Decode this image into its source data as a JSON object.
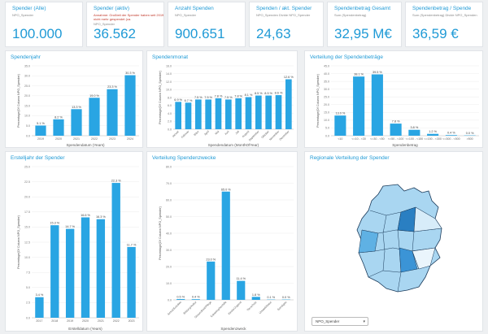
{
  "kpis": [
    {
      "title": "Spender (Alle)",
      "sub": "NPO_Spender",
      "sub2": "",
      "value": "100.000"
    },
    {
      "title": "Spender (aktiv)",
      "sub": "Annahme: Großteil der Spender haben seit 2019 nicht mehr gespendet (ca.",
      "sub2": "NPO_Spender",
      "value": "36.562"
    },
    {
      "title": "Anzahl Spenden",
      "sub": "NPO_Spender",
      "sub2": "",
      "value": "900.651"
    },
    {
      "title": "Spenden / akt. Spender",
      "sub": "NPO_Spenden Divide NPO_Spender",
      "sub2": "",
      "value": "24,63"
    },
    {
      "title": "Spendenbetrag Gesamt",
      "sub": "Sum (Spendenbetrag)",
      "sub2": "",
      "value": "32,95 M€"
    },
    {
      "title": "Spendenbetrag / Spende",
      "sub": "Sum (Spendenbetrag) Divide NPO_Spenden",
      "sub2": "",
      "value": "36,59 €"
    }
  ],
  "charts": {
    "spendenjahr": {
      "title": "Spendenjahr"
    },
    "spendenmonat": {
      "title": "Spendenmonat"
    },
    "verteilung_betraege": {
      "title": "Verteilung der Spendenbeträge"
    },
    "erstelljahr": {
      "title": "Erstelljahr der Spender"
    },
    "spendenzwecke": {
      "title": "Verteilung Spendenzwecke"
    },
    "regional": {
      "title": "Regionale Verteilung der Spender"
    }
  },
  "region_select": {
    "value": "NPO_Spender"
  },
  "colors": {
    "accent": "#1f9ad6",
    "bar": "#29a5e3"
  },
  "chart_data": [
    {
      "type": "bar",
      "title": "Spendenjahr",
      "xlabel": "Spendendatum (Years)",
      "ylabel": "Percentage(Of Column NPO_Spender)",
      "categories": [
        "2019",
        "2020",
        "2021",
        "2022",
        "2023",
        "2024"
      ],
      "values": [
        5.1,
        8.2,
        13.3,
        19.0,
        23.3,
        30.3
      ],
      "labels": [
        "5.1 %",
        "8.2 %",
        "13.3 %",
        "19.0 %",
        "23.3 %",
        "30.3 %"
      ],
      "ylim": [
        0,
        35
      ],
      "yticks": [
        "0.0",
        "5.0",
        "10.0",
        "15.0",
        "20.0",
        "25.0",
        "30.0",
        "35.0"
      ]
    },
    {
      "type": "bar",
      "title": "Spendenmonat",
      "xlabel": "Spendendatum (MonthOfYear)",
      "ylabel": "Percentage(Of Column NPO_Spender)",
      "categories": [
        "Januar",
        "Februar",
        "März",
        "April",
        "Mai",
        "Juni",
        "Juli",
        "August",
        "September",
        "Oktober",
        "November",
        "Dezember"
      ],
      "values": [
        6.9,
        6.7,
        7.5,
        7.5,
        7.8,
        7.5,
        7.8,
        8.1,
        8.5,
        8.5,
        8.6,
        12.6
      ],
      "labels": [
        "6.9 %",
        "6.7 %",
        "7.5 %",
        "7.5 %",
        "7.8 %",
        "7.5 %",
        "7.8 %",
        "8.1 %",
        "8.5 %",
        "8.5 %",
        "8.6 %",
        "12.6 %"
      ],
      "ylim": [
        0,
        16
      ],
      "yticks": [
        "0.0",
        "2.0",
        "4.0",
        "6.0",
        "8.0",
        "10.0",
        "12.0",
        "14.0",
        "16.0"
      ]
    },
    {
      "type": "bar",
      "title": "Verteilung der Spendenbeträge",
      "xlabel": "Spendenbetrag",
      "ylabel": "Percentage(Of Column NPO_Spender)",
      "categories": [
        "<10",
        "<=10 - <30",
        "<=30 - <50",
        "<=50 - <100",
        "<=100 - <150",
        "<=150 - <300",
        "<=300 - <500",
        ">500"
      ],
      "values": [
        13.0,
        38.1,
        39.5,
        7.8,
        3.8,
        1.2,
        0.4,
        0.0
      ],
      "labels": [
        "13.0 %",
        "38.1 %",
        "39.5 %",
        "7.8 %",
        "3.8 %",
        "1.2 %",
        "0.4 %",
        "0.0 %"
      ],
      "ylim": [
        0,
        45
      ],
      "yticks": [
        "0.0",
        "5.0",
        "10.0",
        "15.0",
        "20.0",
        "25.0",
        "30.0",
        "35.0",
        "40.0",
        "45.0"
      ]
    },
    {
      "type": "bar",
      "title": "Erstelljahr der Spender",
      "xlabel": "Erstelldatum (Years)",
      "ylabel": "Percentage(Of Column NPO_Spender)",
      "categories": [
        "2017",
        "2018",
        "2019",
        "2020",
        "2021",
        "2022",
        "2023"
      ],
      "values": [
        3.4,
        15.3,
        14.7,
        16.6,
        16.3,
        22.3,
        11.7
      ],
      "labels": [
        "3.4 %",
        "15.3 %",
        "14.7 %",
        "16.6 %",
        "16.3 %",
        "22.3 %",
        "11.7 %"
      ],
      "ylim": [
        0,
        25
      ],
      "yticks": [
        "0.0",
        "2.5",
        "5.0",
        "7.5",
        "10.0",
        "12.5",
        "15.0",
        "17.5",
        "20.0",
        "22.5",
        "25.0"
      ]
    },
    {
      "type": "bar",
      "title": "Verteilung Spendenzwecke",
      "xlabel": "Spendenzweck",
      "ylabel": "Percentage(Of Column NPO_Spender)",
      "categories": [
        "Armut/Soziales",
        "Bildung/Kultur",
        "Gesundheit/Pflege",
        "Katastrophenhilfe",
        "Kinder/Jugend",
        "Tierschutz",
        "Umwelt/Natur",
        "Sonstiges"
      ],
      "values": [
        0.5,
        0.4,
        23.0,
        65.0,
        11.4,
        1.8,
        0.1,
        0.0
      ],
      "labels": [
        "0.5 %",
        "0.4 %",
        "23.0 %",
        "65.0 %",
        "11.4 %",
        "1.8 %",
        "0.1 %",
        "0.0 %"
      ],
      "ylim": [
        0,
        80
      ],
      "yticks": [
        "0.0",
        "10.0",
        "20.0",
        "30.0",
        "40.0",
        "50.0",
        "60.0",
        "70.0",
        "80.0"
      ]
    }
  ]
}
